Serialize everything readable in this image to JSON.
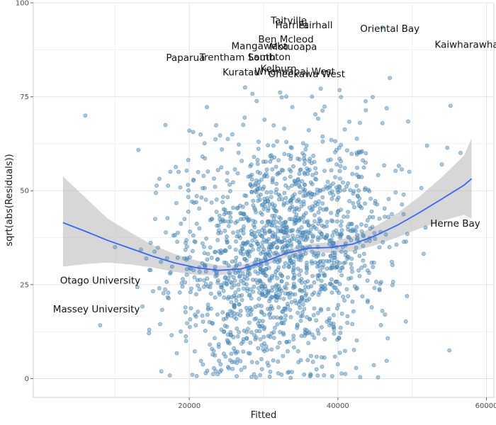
{
  "chart_data": {
    "type": "scatter",
    "title": "",
    "xlabel": "Fitted",
    "ylabel": "sqrt(abs(Residuals))",
    "xlim": [
      -1000,
      61000
    ],
    "ylim": [
      -5,
      100
    ],
    "x_ticks": [
      20000,
      40000,
      60000
    ],
    "x_tick_labels": [
      "20000",
      "40000",
      "60000"
    ],
    "y_ticks": [
      0,
      25,
      50,
      75,
      100
    ],
    "y_tick_labels": [
      "0",
      "25",
      "50",
      "75",
      "100"
    ],
    "grid": true,
    "legend": "none",
    "colors": {
      "point_fill": "#4f93c6",
      "point_stroke": "#2f6d9d",
      "smooth_line": "#3366ff",
      "confidence_band": "#bdbdbd",
      "grid_major": "#e3e3e3",
      "grid_minor": "#f1f1f1",
      "panel_border": "#cfcfcf"
    },
    "points_note_count": 1600,
    "smooth_curve": {
      "x": [
        3000,
        6000,
        9000,
        12000,
        15000,
        18000,
        21000,
        24000,
        27000,
        30000,
        33000,
        36000,
        39000,
        42000,
        45000,
        48000,
        51000,
        54000,
        57000,
        58000
      ],
      "y": [
        41.5,
        39.2,
        36.8,
        34.7,
        32.6,
        30.8,
        29.5,
        28.8,
        29.2,
        31.0,
        33.3,
        34.7,
        34.9,
        35.8,
        38.0,
        40.8,
        44.2,
        47.8,
        51.5,
        53.2
      ],
      "lower": [
        29.8,
        30.5,
        30.9,
        30.4,
        29.6,
        28.4,
        27.6,
        27.5,
        28.2,
        29.9,
        32.2,
        33.6,
        33.5,
        33.8,
        35.5,
        37.6,
        39.9,
        42.0,
        43.6,
        42.5
      ],
      "upper": [
        53.8,
        48.2,
        42.6,
        39.0,
        35.6,
        33.2,
        31.4,
        30.1,
        30.2,
        32.1,
        34.4,
        35.8,
        36.3,
        37.8,
        40.5,
        44.0,
        48.5,
        53.6,
        59.4,
        64.0
      ]
    },
    "annotations": [
      {
        "label": "Taitville",
        "x": 33400,
        "y": 95.2
      },
      {
        "label": "Harriet",
        "x": 33800,
        "y": 94.0
      },
      {
        "label": "Fairhall",
        "x": 37000,
        "y": 94.0
      },
      {
        "label": "Oriental Bay",
        "x": 47000,
        "y": 93.0
      },
      {
        "label": "Kaiwharawhara",
        "x": 58000,
        "y": 88.8
      },
      {
        "label": "Ben Mcleod",
        "x": 33000,
        "y": 90.2
      },
      {
        "label": "Mangaweka",
        "x": 29500,
        "y": 88.4
      },
      {
        "label": "Motuoapa",
        "x": 34000,
        "y": 88.2
      },
      {
        "label": "Paparua",
        "x": 19500,
        "y": 85.3
      },
      {
        "label": "Trentham South",
        "x": 26500,
        "y": 85.4
      },
      {
        "label": "Lambton",
        "x": 30800,
        "y": 85.5
      },
      {
        "label": "Kelburn",
        "x": 32000,
        "y": 82.4
      },
      {
        "label": "Whenuapai West",
        "x": 34200,
        "y": 81.6
      },
      {
        "label": "Oneekawa West",
        "x": 35800,
        "y": 81.0
      },
      {
        "label": "Kuratau",
        "x": 27000,
        "y": 81.4
      },
      {
        "label": "Herne Bay",
        "x": 55800,
        "y": 41.2
      },
      {
        "label": "Otago University",
        "x": 8000,
        "y": 26.0
      },
      {
        "label": "Massey University",
        "x": 7500,
        "y": 18.4
      }
    ],
    "highlight_points": [
      {
        "x": 6000,
        "y": 70.0
      },
      {
        "x": 8000,
        "y": 14.2
      },
      {
        "x": 46000,
        "y": 68.0
      },
      {
        "x": 47000,
        "y": 80.0
      },
      {
        "x": 46000,
        "y": 93.5
      },
      {
        "x": 55000,
        "y": 7.5
      },
      {
        "x": 43000,
        "y": 0.4
      },
      {
        "x": 27500,
        "y": 77.5
      },
      {
        "x": 28500,
        "y": 75.8
      },
      {
        "x": 20000,
        "y": 66.0
      },
      {
        "x": 52000,
        "y": 62.0
      },
      {
        "x": 10000,
        "y": 35.0
      },
      {
        "x": 54000,
        "y": 57.0
      }
    ]
  }
}
